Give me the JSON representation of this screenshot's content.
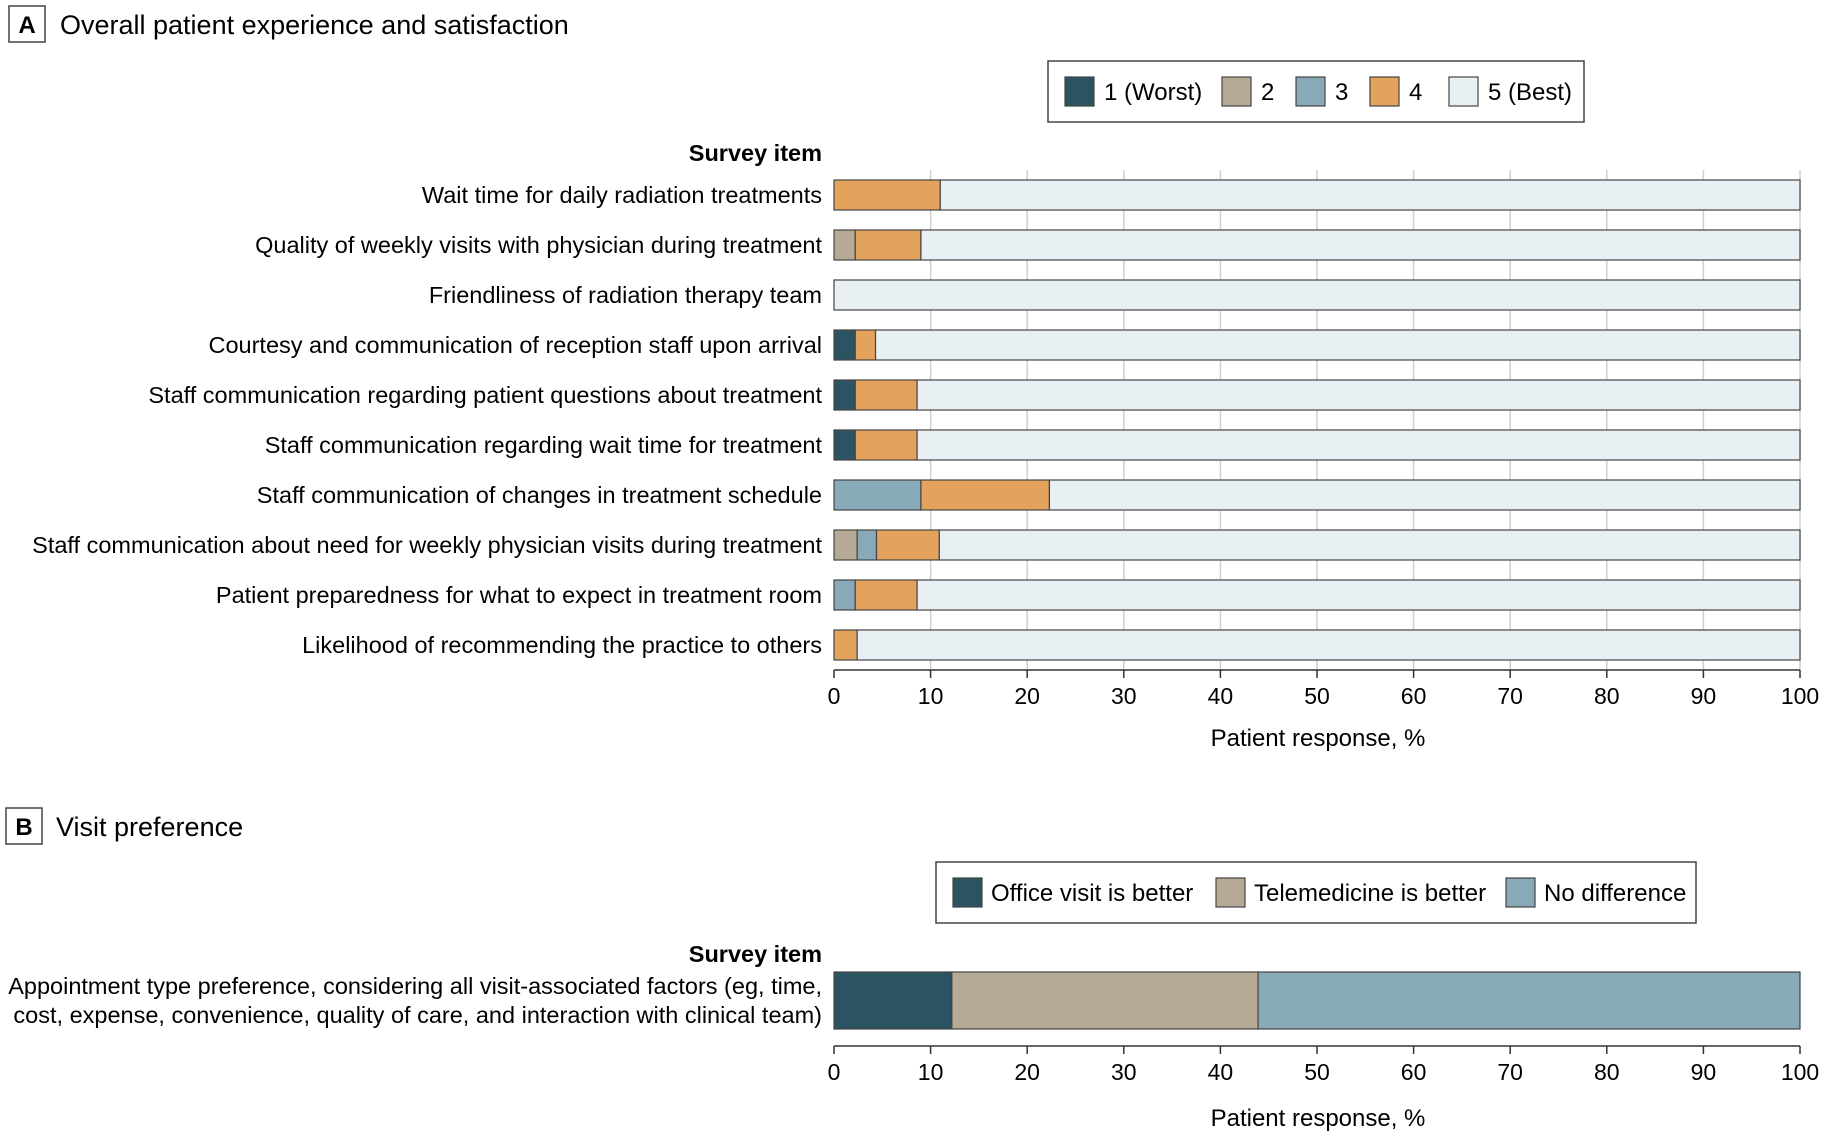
{
  "colors": {
    "c1": "#2b5361",
    "c2": "#b6aa96",
    "c3": "#88a9b8",
    "c4": "#e4a35c",
    "c5": "#e9f0f3",
    "grid": "#cfcfcf",
    "stroke": "#444444"
  },
  "chart_data": [
    {
      "type": "bar",
      "orientation": "horizontal",
      "stacked": true,
      "panel_letter": "A",
      "title": "Overall patient experience and satisfaction",
      "ylabel": "Survey item",
      "xlabel": "Patient response, %",
      "xlim": [
        0,
        100
      ],
      "xticks": [
        "0",
        "10",
        "20",
        "30",
        "40",
        "50",
        "60",
        "70",
        "80",
        "90",
        "100"
      ],
      "grid": true,
      "legend_position": "top-right",
      "categories": [
        "Wait time for daily radiation treatments",
        "Quality of weekly visits with physician during treatment",
        "Friendliness of radiation therapy team",
        "Courtesy and communication of reception staff upon arrival",
        "Staff communication regarding patient questions about treatment",
        "Staff communication regarding wait time for treatment",
        "Staff communication of changes in treatment schedule",
        "Staff communication about need for weekly physician visits during treatment",
        "Patient preparedness for what to expect in treatment room",
        "Likelihood of recommending the practice to others"
      ],
      "series": [
        {
          "name": "1 (Worst)",
          "color": "#2b5361",
          "values": [
            0,
            0,
            0,
            2.2,
            2.2,
            2.2,
            0,
            0,
            0,
            0
          ]
        },
        {
          "name": "2",
          "color": "#b6aa96",
          "values": [
            0,
            2.2,
            0,
            0,
            0,
            0,
            0,
            2.4,
            0,
            0
          ]
        },
        {
          "name": "3",
          "color": "#88a9b8",
          "values": [
            0,
            0,
            0,
            0,
            0,
            0,
            9.0,
            2.0,
            2.2,
            0
          ]
        },
        {
          "name": "4",
          "color": "#e4a35c",
          "values": [
            11.0,
            6.8,
            0,
            2.1,
            6.4,
            6.4,
            13.3,
            6.5,
            6.4,
            2.4
          ]
        },
        {
          "name": "5 (Best)",
          "color": "#e9f0f3",
          "values": [
            89.0,
            91.0,
            100,
            95.7,
            91.4,
            91.4,
            77.7,
            89.1,
            91.4,
            97.6
          ]
        }
      ]
    },
    {
      "type": "bar",
      "orientation": "horizontal",
      "stacked": true,
      "panel_letter": "B",
      "title": "Visit preference",
      "ylabel": "Survey item",
      "xlabel": "Patient response, %",
      "xlim": [
        0,
        100
      ],
      "xticks": [
        "0",
        "10",
        "20",
        "30",
        "40",
        "50",
        "60",
        "70",
        "80",
        "90",
        "100"
      ],
      "grid": false,
      "legend_position": "top-right",
      "categories": [
        "Appointment type preference, considering all visit-associated factors (eg, time, cost, expense, convenience, quality of care, and interaction with clinical team)"
      ],
      "category_lines": [
        [
          "Appointment type preference, considering all visit-associated factors (eg, time,",
          "cost, expense, convenience, quality of care, and interaction with clinical team)"
        ]
      ],
      "series": [
        {
          "name": "Office visit is better",
          "color": "#2b5361",
          "values": [
            12.2
          ]
        },
        {
          "name": "Telemedicine is better",
          "color": "#b6aa96",
          "values": [
            31.7
          ]
        },
        {
          "name": "No difference",
          "color": "#88a9b8",
          "values": [
            56.1
          ]
        }
      ]
    }
  ]
}
